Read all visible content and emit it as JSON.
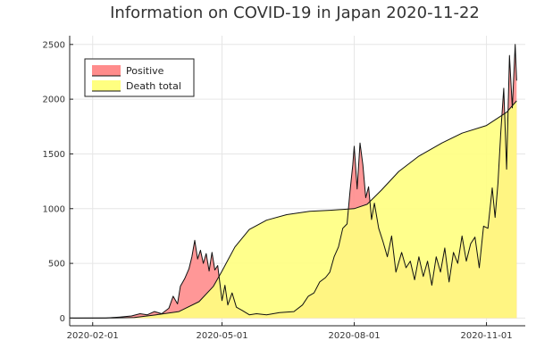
{
  "chart_data": {
    "type": "area",
    "title": "Information on COVID-19 in Japan 2020-11-22",
    "xlabel": "",
    "ylabel": "",
    "x_ticks": [
      "2020-02-01",
      "2020-05-01",
      "2020-08-01",
      "2020-11-01"
    ],
    "y_ticks": [
      0,
      500,
      1000,
      1500,
      2000,
      2500
    ],
    "xlim": [
      "2020-01-16",
      "2020-11-28"
    ],
    "ylim": [
      -70,
      2580
    ],
    "grid": true,
    "legend_position": "top-left",
    "series": [
      {
        "name": "Positive",
        "color": "#ff8c8c",
        "line_color": "#111111",
        "x": [
          "2020-01-16",
          "2020-02-10",
          "2020-02-20",
          "2020-02-28",
          "2020-03-05",
          "2020-03-10",
          "2020-03-15",
          "2020-03-20",
          "2020-03-25",
          "2020-03-28",
          "2020-03-31",
          "2020-04-02",
          "2020-04-05",
          "2020-04-08",
          "2020-04-10",
          "2020-04-12",
          "2020-04-14",
          "2020-04-16",
          "2020-04-18",
          "2020-04-20",
          "2020-04-22",
          "2020-04-24",
          "2020-04-26",
          "2020-04-28",
          "2020-05-01",
          "2020-05-03",
          "2020-05-05",
          "2020-05-08",
          "2020-05-11",
          "2020-05-15",
          "2020-05-20",
          "2020-05-25",
          "2020-06-01",
          "2020-06-10",
          "2020-06-20",
          "2020-06-26",
          "2020-06-30",
          "2020-07-04",
          "2020-07-08",
          "2020-07-12",
          "2020-07-15",
          "2020-07-18",
          "2020-07-21",
          "2020-07-24",
          "2020-07-27",
          "2020-07-29",
          "2020-07-31",
          "2020-08-01",
          "2020-08-03",
          "2020-08-05",
          "2020-08-07",
          "2020-08-09",
          "2020-08-11",
          "2020-08-13",
          "2020-08-15",
          "2020-08-18",
          "2020-08-21",
          "2020-08-24",
          "2020-08-27",
          "2020-08-30",
          "2020-09-03",
          "2020-09-06",
          "2020-09-09",
          "2020-09-12",
          "2020-09-15",
          "2020-09-18",
          "2020-09-21",
          "2020-09-24",
          "2020-09-27",
          "2020-09-30",
          "2020-10-03",
          "2020-10-06",
          "2020-10-09",
          "2020-10-12",
          "2020-10-15",
          "2020-10-18",
          "2020-10-21",
          "2020-10-24",
          "2020-10-27",
          "2020-10-30",
          "2020-11-02",
          "2020-11-05",
          "2020-11-07",
          "2020-11-09",
          "2020-11-11",
          "2020-11-13",
          "2020-11-15",
          "2020-11-17",
          "2020-11-19",
          "2020-11-21",
          "2020-11-22"
        ],
        "values": [
          0,
          0,
          10,
          20,
          40,
          30,
          60,
          40,
          90,
          200,
          130,
          290,
          360,
          450,
          560,
          710,
          540,
          620,
          500,
          590,
          430,
          600,
          440,
          480,
          160,
          300,
          120,
          230,
          100,
          70,
          30,
          40,
          30,
          50,
          60,
          120,
          200,
          230,
          330,
          370,
          420,
          560,
          650,
          820,
          860,
          1150,
          1400,
          1570,
          1180,
          1600,
          1400,
          1100,
          1200,
          900,
          1050,
          820,
          700,
          560,
          750,
          420,
          600,
          460,
          520,
          350,
          560,
          380,
          520,
          300,
          560,
          420,
          640,
          330,
          600,
          500,
          750,
          520,
          680,
          740,
          460,
          840,
          820,
          1190,
          920,
          1230,
          1700,
          2100,
          1360,
          2400,
          1920,
          2500,
          2170
        ]
      },
      {
        "name": "Death total",
        "color": "#ffff80",
        "line_color": "#111111",
        "x": [
          "2020-01-16",
          "2020-02-13",
          "2020-03-01",
          "2020-03-15",
          "2020-04-01",
          "2020-04-15",
          "2020-04-25",
          "2020-05-01",
          "2020-05-10",
          "2020-05-20",
          "2020-06-01",
          "2020-06-15",
          "2020-07-01",
          "2020-07-15",
          "2020-08-01",
          "2020-08-10",
          "2020-08-20",
          "2020-09-01",
          "2020-09-15",
          "2020-10-01",
          "2020-10-15",
          "2020-11-01",
          "2020-11-15",
          "2020-11-22"
        ],
        "values": [
          0,
          1,
          5,
          28,
          60,
          150,
          290,
          430,
          650,
          810,
          895,
          945,
          975,
          985,
          1000,
          1040,
          1170,
          1340,
          1480,
          1600,
          1690,
          1760,
          1880,
          1985
        ]
      }
    ]
  }
}
